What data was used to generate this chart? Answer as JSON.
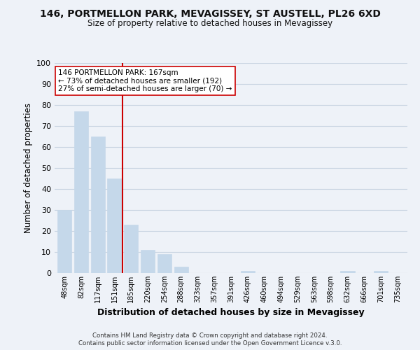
{
  "title": "146, PORTMELLON PARK, MEVAGISSEY, ST AUSTELL, PL26 6XD",
  "subtitle": "Size of property relative to detached houses in Mevagissey",
  "xlabel": "Distribution of detached houses by size in Mevagissey",
  "ylabel": "Number of detached properties",
  "bar_labels": [
    "48sqm",
    "82sqm",
    "117sqm",
    "151sqm",
    "185sqm",
    "220sqm",
    "254sqm",
    "288sqm",
    "323sqm",
    "357sqm",
    "391sqm",
    "426sqm",
    "460sqm",
    "494sqm",
    "529sqm",
    "563sqm",
    "598sqm",
    "632sqm",
    "666sqm",
    "701sqm",
    "735sqm"
  ],
  "bar_values": [
    30,
    77,
    65,
    45,
    23,
    11,
    9,
    3,
    0,
    0,
    0,
    1,
    0,
    0,
    0,
    0,
    0,
    1,
    0,
    1,
    0
  ],
  "bar_color": "#c5d8ea",
  "bar_edge_color": "#c5d8ea",
  "grid_color": "#c8d4e2",
  "background_color": "#eef2f8",
  "vline_x": 3.5,
  "vline_color": "#cc0000",
  "annotation_line1": "146 PORTMELLON PARK: 167sqm",
  "annotation_line2": "← 73% of detached houses are smaller (192)",
  "annotation_line3": "27% of semi-detached houses are larger (70) →",
  "annotation_box_color": "#ffffff",
  "annotation_box_edge": "#cc0000",
  "ylim": [
    0,
    100
  ],
  "yticks": [
    0,
    10,
    20,
    30,
    40,
    50,
    60,
    70,
    80,
    90,
    100
  ],
  "footer1": "Contains HM Land Registry data © Crown copyright and database right 2024.",
  "footer2": "Contains public sector information licensed under the Open Government Licence v.3.0."
}
